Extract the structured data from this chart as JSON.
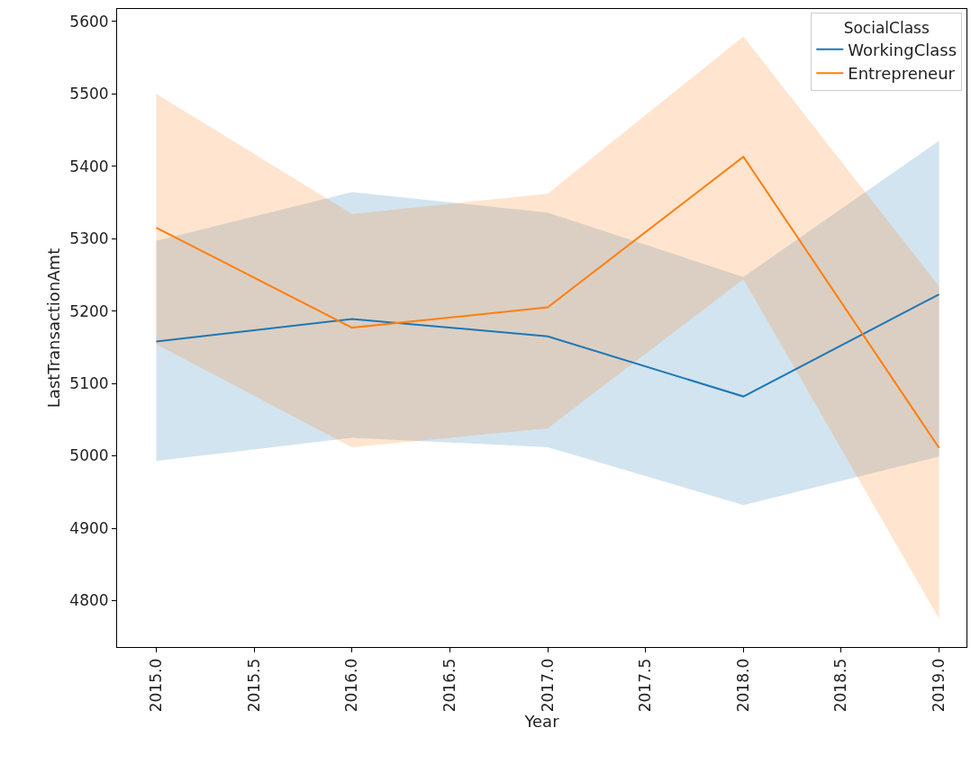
{
  "chart_data": {
    "type": "line",
    "xlabel": "Year",
    "ylabel": "LastTransactionAmt",
    "legend_title": "SocialClass",
    "legend": "top right",
    "grid": false,
    "x": [
      2015,
      2016,
      2017,
      2018,
      2019
    ],
    "series": [
      {
        "name": "WorkingClass",
        "color": "#1f77b4",
        "values": [
          5158,
          5189,
          5165,
          5082,
          5223
        ],
        "lower": [
          4993,
          5025,
          5012,
          4932,
          4999
        ],
        "upper": [
          5297,
          5364,
          5336,
          5247,
          5435
        ]
      },
      {
        "name": "Entrepreneur",
        "color": "#ff7f0e",
        "values": [
          5315,
          5177,
          5205,
          5413,
          5011
        ],
        "lower": [
          5154,
          5012,
          5038,
          5244,
          4775
        ],
        "upper": [
          5500,
          5334,
          5362,
          5579,
          5234
        ]
      }
    ],
    "xlim": [
      2014.8,
      2019.14
    ],
    "ylim": [
      4736,
      5617
    ],
    "xticks": [
      {
        "value": 2015,
        "label": "2015.0"
      },
      {
        "value": 2015.5,
        "label": "2015.5"
      },
      {
        "value": 2016,
        "label": "2016.0"
      },
      {
        "value": 2016.5,
        "label": "2016.5"
      },
      {
        "value": 2017,
        "label": "2017.0"
      },
      {
        "value": 2017.5,
        "label": "2017.5"
      },
      {
        "value": 2018,
        "label": "2018.0"
      },
      {
        "value": 2018.5,
        "label": "2018.5"
      },
      {
        "value": 2019,
        "label": "2019.0"
      }
    ],
    "yticks": [
      4800,
      4900,
      5000,
      5100,
      5200,
      5300,
      5400,
      5500,
      5600
    ]
  }
}
